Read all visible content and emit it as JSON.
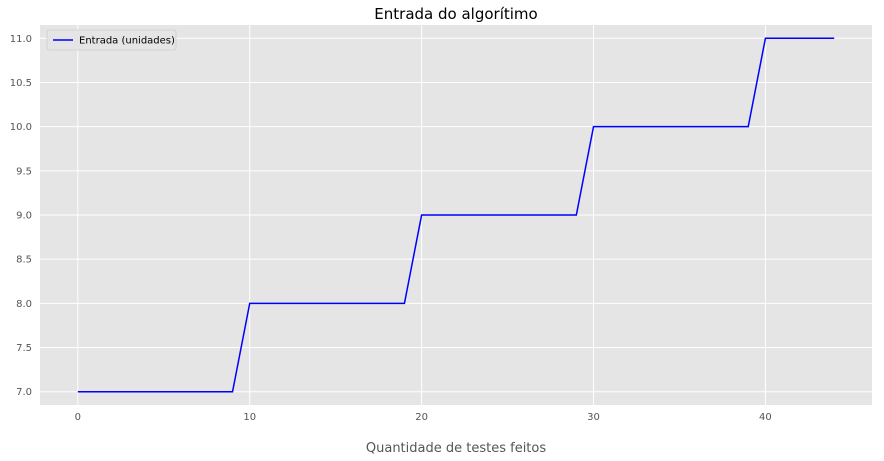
{
  "chart_data": {
    "type": "line",
    "title": "Entrada do algorítimo",
    "xlabel": "Quantidade de testes feitos",
    "ylabel": "",
    "xlim": [
      -2.2,
      46.2
    ],
    "ylim": [
      6.85,
      11.15
    ],
    "xticks": [
      0,
      10,
      20,
      30,
      40
    ],
    "xtick_labels": [
      "0",
      "10",
      "20",
      "30",
      "40"
    ],
    "yticks": [
      7.0,
      7.5,
      8.0,
      8.5,
      9.0,
      9.5,
      10.0,
      10.5,
      11.0
    ],
    "ytick_labels": [
      "7.0",
      "7.5",
      "8.0",
      "8.5",
      "9.0",
      "9.5",
      "10.0",
      "10.5",
      "11.0"
    ],
    "grid": true,
    "legend_position": "top-left",
    "series": [
      {
        "name": "Entrada (unidades)",
        "color": "#0000ff",
        "x": [
          0,
          1,
          2,
          3,
          4,
          5,
          6,
          7,
          8,
          9,
          10,
          11,
          12,
          13,
          14,
          15,
          16,
          17,
          18,
          19,
          20,
          21,
          22,
          23,
          24,
          25,
          26,
          27,
          28,
          29,
          30,
          31,
          32,
          33,
          34,
          35,
          36,
          37,
          38,
          39,
          40,
          41,
          42,
          43,
          44
        ],
        "y": [
          7,
          7,
          7,
          7,
          7,
          7,
          7,
          7,
          7,
          7,
          8,
          8,
          8,
          8,
          8,
          8,
          8,
          8,
          8,
          8,
          9,
          9,
          9,
          9,
          9,
          9,
          9,
          9,
          9,
          9,
          10,
          10,
          10,
          10,
          10,
          10,
          10,
          10,
          10,
          10,
          11,
          11,
          11,
          11,
          11
        ]
      }
    ]
  },
  "colors": {
    "plot_background": "#e5e5e5",
    "grid": "#ffffff",
    "tick_text": "#555555"
  }
}
